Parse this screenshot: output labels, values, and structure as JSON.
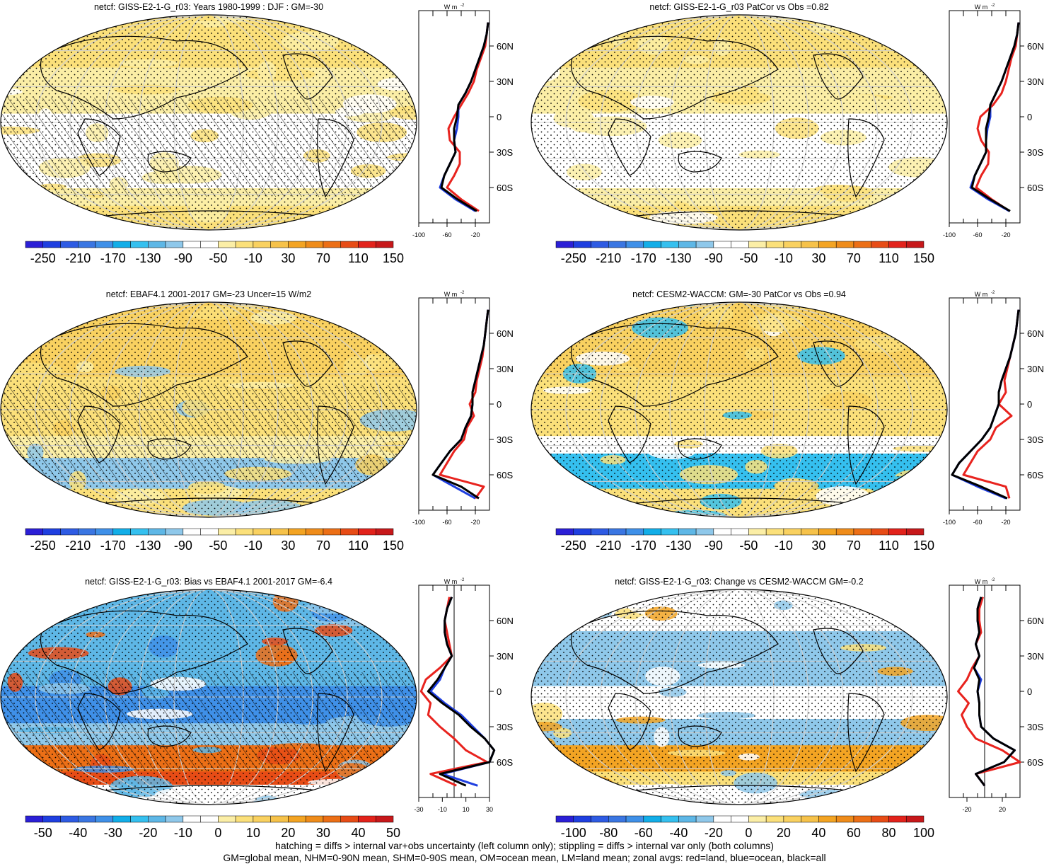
{
  "colors": {
    "land": "#e8231e",
    "ocean": "#1f3fe0",
    "all": "#000000",
    "abs_scale": [
      "#2b1fd6",
      "#1f3fe0",
      "#2e5be3",
      "#3a76e2",
      "#3f90e8",
      "#12aee8",
      "#35c0ef",
      "#5eb7e6",
      "#8fc8ea",
      "#ffffff",
      "#ffffff",
      "#fbeea6",
      "#fbe07a",
      "#f9d160",
      "#f6c24a",
      "#f3a423",
      "#ef8c1a",
      "#ec6f16",
      "#e74c16",
      "#e2221b",
      "#c7181a"
    ],
    "diff_scale": [
      "#2b1fd6",
      "#1f3fe0",
      "#2e5be3",
      "#3a76e2",
      "#3f90e8",
      "#12aee8",
      "#35c0ef",
      "#5eb7e6",
      "#8fc8ea",
      "#ffffff",
      "#ffffff",
      "#fbeea6",
      "#fbe07a",
      "#f9d160",
      "#f6c24a",
      "#f3a423",
      "#ef8c1a",
      "#ec6f16",
      "#e74c16",
      "#e2221b",
      "#c7181a"
    ]
  },
  "panels": [
    {
      "title": "netcf: GISS-E2-1-G_r03: Years 1980-1999 : DJF : GM=-30",
      "colorbar_labels": [
        "-250",
        "-210",
        "-170",
        "-130",
        "-90",
        "-50",
        "-10",
        "30",
        "70",
        "110",
        "150"
      ],
      "zonal_x_ticks": [
        "-100",
        "-60",
        "-20"
      ],
      "zonal_unit": "W m",
      "zonal_unit_exp": "-2",
      "lat_labels": [
        "60N",
        "30N",
        "0",
        "30S",
        "60S"
      ],
      "hatched": true
    },
    {
      "title": "netcf: GISS-E2-1-G_r03 PatCor vs Obs =0.82",
      "colorbar_labels": [
        "-250",
        "-210",
        "-170",
        "-130",
        "-90",
        "-50",
        "-10",
        "30",
        "70",
        "110",
        "150"
      ],
      "zonal_x_ticks": [
        "-100",
        "-60",
        "-20"
      ],
      "zonal_unit": "W m",
      "zonal_unit_exp": "-2",
      "lat_labels": [
        "60N",
        "30N",
        "0",
        "30S",
        "60S"
      ],
      "hatched": false
    },
    {
      "title": "netcf: EBAF4.1 2001-2017 GM=-23 Uncer=15 W/m2",
      "colorbar_labels": [
        "-250",
        "-210",
        "-170",
        "-130",
        "-90",
        "-50",
        "-10",
        "30",
        "70",
        "110",
        "150"
      ],
      "zonal_x_ticks": [
        "-100",
        "-60",
        "-20"
      ],
      "zonal_unit": "W m",
      "zonal_unit_exp": "-2",
      "lat_labels": [
        "60N",
        "30N",
        "0",
        "30S",
        "60S"
      ],
      "hatched": true
    },
    {
      "title": "netcf: CESM2-WACCM: GM=-30 PatCor vs Obs =0.94",
      "colorbar_labels": [
        "-250",
        "-210",
        "-170",
        "-130",
        "-90",
        "-50",
        "-10",
        "30",
        "70",
        "110",
        "150"
      ],
      "zonal_x_ticks": [
        "-100",
        "-60",
        "-20"
      ],
      "zonal_unit": "W m",
      "zonal_unit_exp": "-2",
      "lat_labels": [
        "60N",
        "30N",
        "0",
        "30S",
        "60S"
      ],
      "hatched": false
    },
    {
      "title": "netcf: GISS-E2-1-G_r03: Bias vs EBAF4.1 2001-2017 GM=-6.4",
      "colorbar_labels": [
        "-50",
        "-40",
        "-30",
        "-20",
        "-10",
        "0",
        "10",
        "20",
        "30",
        "40",
        "50"
      ],
      "zonal_x_ticks": [
        "-30",
        "-10",
        "10",
        "30"
      ],
      "zonal_unit": "W m",
      "zonal_unit_exp": "-2",
      "lat_labels": [
        "60N",
        "30N",
        "0",
        "30S",
        "60S"
      ],
      "hatched": true
    },
    {
      "title": "netcf: GISS-E2-1-G_r03: Change vs CESM2-WACCM GM=-0.2",
      "colorbar_labels": [
        "-100",
        "-80",
        "-60",
        "-40",
        "-20",
        "0",
        "20",
        "40",
        "60",
        "80",
        "100"
      ],
      "zonal_x_ticks": [
        "-20",
        "20"
      ],
      "zonal_unit": "W m",
      "zonal_unit_exp": "-2",
      "lat_labels": [
        "60N",
        "30N",
        "0",
        "30S",
        "60S"
      ],
      "hatched": false
    }
  ],
  "footer": {
    "line1": "hatching = diffs > internal var+obs uncertainty (left column only); stippling = diffs > internal var only (both columns)",
    "line2": "GM=global mean, NHM=0-90N mean, SHM=0-90S mean, OM=ocean mean, LM=land mean; zonal avgs: red=land, blue=ocean, black=all"
  },
  "chart_data": [
    {
      "type": "line",
      "title": "netcf: GISS-E2-1-G_r03: Years 1980-1999 : DJF : GM=-30",
      "xlim": [
        -100,
        0
      ],
      "ylim": [
        -90,
        90
      ],
      "y": [
        80,
        70,
        60,
        50,
        40,
        30,
        20,
        10,
        0,
        -10,
        -20,
        -30,
        -40,
        -50,
        -60,
        -70,
        -80
      ],
      "series": [
        {
          "color": "land",
          "values": [
            -2,
            -4,
            -6,
            -12,
            -18,
            -22,
            -30,
            -40,
            -50,
            -58,
            -56,
            -42,
            -42,
            -50,
            -60,
            -40,
            -15
          ]
        },
        {
          "color": "ocean",
          "values": [
            -2,
            -4,
            -8,
            -14,
            -20,
            -26,
            -34,
            -44,
            -44,
            -46,
            -50,
            -48,
            -56,
            -64,
            -70,
            -48,
            -20
          ]
        },
        {
          "color": "all",
          "values": [
            -2,
            -4,
            -8,
            -14,
            -20,
            -26,
            -34,
            -44,
            -46,
            -50,
            -50,
            -48,
            -56,
            -64,
            -68,
            -45,
            -18
          ]
        }
      ]
    },
    {
      "type": "line",
      "title": "netcf: GISS-E2-1-G_r03 PatCor vs Obs =0.82",
      "xlim": [
        -100,
        0
      ],
      "ylim": [
        -90,
        90
      ],
      "y": [
        80,
        70,
        60,
        50,
        40,
        30,
        20,
        10,
        0,
        -10,
        -20,
        -30,
        -40,
        -50,
        -60,
        -70,
        -80
      ],
      "series": [
        {
          "color": "land",
          "values": [
            -2,
            -4,
            -6,
            -12,
            -16,
            -20,
            -26,
            -38,
            -56,
            -60,
            -55,
            -44,
            -45,
            -55,
            -62,
            -40,
            -15
          ]
        },
        {
          "color": "ocean",
          "values": [
            -2,
            -4,
            -8,
            -14,
            -20,
            -26,
            -34,
            -42,
            -42,
            -46,
            -48,
            -48,
            -56,
            -64,
            -70,
            -45,
            -15
          ]
        },
        {
          "color": "all",
          "values": [
            -2,
            -4,
            -8,
            -14,
            -20,
            -26,
            -34,
            -42,
            -44,
            -48,
            -48,
            -48,
            -56,
            -64,
            -68,
            -42,
            -14
          ]
        }
      ]
    },
    {
      "type": "line",
      "title": "netcf: EBAF4.1 2001-2017 GM=-23 Uncer=15 W/m2",
      "xlim": [
        -100,
        0
      ],
      "ylim": [
        -90,
        90
      ],
      "y": [
        80,
        70,
        60,
        50,
        40,
        30,
        20,
        10,
        0,
        -10,
        -20,
        -30,
        -40,
        -50,
        -60,
        -70,
        -80
      ],
      "series": [
        {
          "color": "land",
          "values": [
            -2,
            -4,
            -6,
            -8,
            -10,
            -14,
            -18,
            -20,
            -28,
            -22,
            -32,
            -36,
            -50,
            -60,
            -70,
            -8,
            -20
          ]
        },
        {
          "color": "ocean",
          "values": [
            -2,
            -4,
            -6,
            -8,
            -12,
            -16,
            -20,
            -24,
            -24,
            -26,
            -34,
            -40,
            -56,
            -68,
            -80,
            -50,
            -20
          ]
        },
        {
          "color": "all",
          "values": [
            -2,
            -4,
            -6,
            -8,
            -12,
            -16,
            -20,
            -24,
            -24,
            -26,
            -34,
            -40,
            -56,
            -68,
            -80,
            -40,
            -15
          ]
        }
      ]
    },
    {
      "type": "line",
      "title": "netcf: CESM2-WACCM: GM=-30 PatCor vs Obs =0.94",
      "xlim": [
        -100,
        0
      ],
      "ylim": [
        -90,
        90
      ],
      "y": [
        80,
        70,
        60,
        50,
        40,
        30,
        20,
        10,
        0,
        -10,
        -20,
        -30,
        -40,
        -50,
        -60,
        -70,
        -80
      ],
      "series": [
        {
          "color": "land",
          "values": [
            -2,
            -4,
            -6,
            -10,
            -14,
            -18,
            -22,
            -20,
            -30,
            -12,
            -34,
            -42,
            -60,
            -70,
            -80,
            -20,
            -15
          ]
        },
        {
          "color": "ocean",
          "values": [
            -2,
            -4,
            -6,
            -10,
            -14,
            -20,
            -26,
            -30,
            -30,
            -36,
            -42,
            -54,
            -70,
            -86,
            -96,
            -60,
            -20
          ]
        },
        {
          "color": "all",
          "values": [
            -2,
            -4,
            -6,
            -10,
            -14,
            -20,
            -26,
            -30,
            -30,
            -36,
            -42,
            -54,
            -70,
            -86,
            -96,
            -55,
            -18
          ]
        }
      ]
    },
    {
      "type": "line",
      "title": "netcf: GISS-E2-1-G_r03: Bias vs EBAF4.1 2001-2017 GM=-6.4",
      "xlim": [
        -30,
        30
      ],
      "ylim": [
        -90,
        90
      ],
      "y": [
        80,
        70,
        60,
        50,
        40,
        30,
        20,
        10,
        0,
        -10,
        -20,
        -30,
        -40,
        -50,
        -60,
        -70,
        -80
      ],
      "series": [
        {
          "color": "land",
          "values": [
            -4,
            -6,
            -8,
            -6,
            -4,
            -2,
            -12,
            -24,
            -28,
            -20,
            -22,
            -12,
            0,
            10,
            28,
            -20,
            2
          ]
        },
        {
          "color": "ocean",
          "values": [
            -2,
            -6,
            -8,
            -8,
            -6,
            -2,
            -8,
            -12,
            -20,
            -8,
            6,
            16,
            26,
            34,
            30,
            -10,
            20
          ]
        },
        {
          "color": "all",
          "values": [
            -2,
            -6,
            -8,
            -8,
            -6,
            -2,
            -8,
            -14,
            -22,
            -10,
            4,
            14,
            26,
            34,
            30,
            -12,
            10
          ]
        }
      ]
    },
    {
      "type": "line",
      "title": "netcf: GISS-E2-1-G_r03: Change vs CESM2-WACCM GM=-0.2",
      "xlim": [
        -40,
        40
      ],
      "ylim": [
        -90,
        90
      ],
      "y": [
        80,
        70,
        60,
        50,
        40,
        30,
        20,
        10,
        0,
        -10,
        -20,
        -30,
        -40,
        -50,
        -60,
        -70,
        -80
      ],
      "series": [
        {
          "color": "land",
          "values": [
            -2,
            -6,
            -6,
            -4,
            -10,
            -6,
            -14,
            -20,
            -30,
            -18,
            -26,
            -20,
            -10,
            20,
            40,
            -10,
            0
          ]
        },
        {
          "color": "ocean",
          "values": [
            -4,
            -8,
            -8,
            -6,
            -10,
            -6,
            -12,
            -4,
            -8,
            -6,
            -6,
            -4,
            10,
            34,
            22,
            -10,
            0
          ]
        },
        {
          "color": "all",
          "values": [
            -4,
            -8,
            -8,
            -6,
            -10,
            -6,
            -12,
            -6,
            -8,
            -6,
            -6,
            -4,
            10,
            34,
            22,
            -10,
            0
          ]
        }
      ]
    }
  ]
}
